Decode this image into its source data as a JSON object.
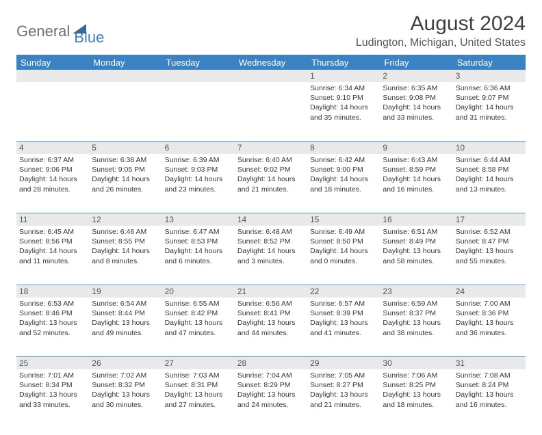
{
  "brand": {
    "part1": "General",
    "part2": "Blue"
  },
  "title": "August 2024",
  "location": "Ludington, Michigan, United States",
  "columns": [
    "Sunday",
    "Monday",
    "Tuesday",
    "Wednesday",
    "Thursday",
    "Friday",
    "Saturday"
  ],
  "colors": {
    "header_bg": "#3b82c4",
    "header_text": "#ffffff",
    "daynum_bg": "#e9e9e9",
    "rule": "#3b82c4",
    "text": "#353535",
    "brand_gray": "#6f6f6f",
    "brand_blue": "#3b82c4"
  },
  "weeks": [
    {
      "nums": [
        "",
        "",
        "",
        "",
        "1",
        "2",
        "3"
      ],
      "cells": [
        null,
        null,
        null,
        null,
        {
          "sunrise": "6:34 AM",
          "sunset": "9:10 PM",
          "daylight": "14 hours and 35 minutes."
        },
        {
          "sunrise": "6:35 AM",
          "sunset": "9:08 PM",
          "daylight": "14 hours and 33 minutes."
        },
        {
          "sunrise": "6:36 AM",
          "sunset": "9:07 PM",
          "daylight": "14 hours and 31 minutes."
        }
      ]
    },
    {
      "nums": [
        "4",
        "5",
        "6",
        "7",
        "8",
        "9",
        "10"
      ],
      "cells": [
        {
          "sunrise": "6:37 AM",
          "sunset": "9:06 PM",
          "daylight": "14 hours and 28 minutes."
        },
        {
          "sunrise": "6:38 AM",
          "sunset": "9:05 PM",
          "daylight": "14 hours and 26 minutes."
        },
        {
          "sunrise": "6:39 AM",
          "sunset": "9:03 PM",
          "daylight": "14 hours and 23 minutes."
        },
        {
          "sunrise": "6:40 AM",
          "sunset": "9:02 PM",
          "daylight": "14 hours and 21 minutes."
        },
        {
          "sunrise": "6:42 AM",
          "sunset": "9:00 PM",
          "daylight": "14 hours and 18 minutes."
        },
        {
          "sunrise": "6:43 AM",
          "sunset": "8:59 PM",
          "daylight": "14 hours and 16 minutes."
        },
        {
          "sunrise": "6:44 AM",
          "sunset": "8:58 PM",
          "daylight": "14 hours and 13 minutes."
        }
      ]
    },
    {
      "nums": [
        "11",
        "12",
        "13",
        "14",
        "15",
        "16",
        "17"
      ],
      "cells": [
        {
          "sunrise": "6:45 AM",
          "sunset": "8:56 PM",
          "daylight": "14 hours and 11 minutes."
        },
        {
          "sunrise": "6:46 AM",
          "sunset": "8:55 PM",
          "daylight": "14 hours and 8 minutes."
        },
        {
          "sunrise": "6:47 AM",
          "sunset": "8:53 PM",
          "daylight": "14 hours and 6 minutes."
        },
        {
          "sunrise": "6:48 AM",
          "sunset": "8:52 PM",
          "daylight": "14 hours and 3 minutes."
        },
        {
          "sunrise": "6:49 AM",
          "sunset": "8:50 PM",
          "daylight": "14 hours and 0 minutes."
        },
        {
          "sunrise": "6:51 AM",
          "sunset": "8:49 PM",
          "daylight": "13 hours and 58 minutes."
        },
        {
          "sunrise": "6:52 AM",
          "sunset": "8:47 PM",
          "daylight": "13 hours and 55 minutes."
        }
      ]
    },
    {
      "nums": [
        "18",
        "19",
        "20",
        "21",
        "22",
        "23",
        "24"
      ],
      "cells": [
        {
          "sunrise": "6:53 AM",
          "sunset": "8:46 PM",
          "daylight": "13 hours and 52 minutes."
        },
        {
          "sunrise": "6:54 AM",
          "sunset": "8:44 PM",
          "daylight": "13 hours and 49 minutes."
        },
        {
          "sunrise": "6:55 AM",
          "sunset": "8:42 PM",
          "daylight": "13 hours and 47 minutes."
        },
        {
          "sunrise": "6:56 AM",
          "sunset": "8:41 PM",
          "daylight": "13 hours and 44 minutes."
        },
        {
          "sunrise": "6:57 AM",
          "sunset": "8:39 PM",
          "daylight": "13 hours and 41 minutes."
        },
        {
          "sunrise": "6:59 AM",
          "sunset": "8:37 PM",
          "daylight": "13 hours and 38 minutes."
        },
        {
          "sunrise": "7:00 AM",
          "sunset": "8:36 PM",
          "daylight": "13 hours and 36 minutes."
        }
      ]
    },
    {
      "nums": [
        "25",
        "26",
        "27",
        "28",
        "29",
        "30",
        "31"
      ],
      "cells": [
        {
          "sunrise": "7:01 AM",
          "sunset": "8:34 PM",
          "daylight": "13 hours and 33 minutes."
        },
        {
          "sunrise": "7:02 AM",
          "sunset": "8:32 PM",
          "daylight": "13 hours and 30 minutes."
        },
        {
          "sunrise": "7:03 AM",
          "sunset": "8:31 PM",
          "daylight": "13 hours and 27 minutes."
        },
        {
          "sunrise": "7:04 AM",
          "sunset": "8:29 PM",
          "daylight": "13 hours and 24 minutes."
        },
        {
          "sunrise": "7:05 AM",
          "sunset": "8:27 PM",
          "daylight": "13 hours and 21 minutes."
        },
        {
          "sunrise": "7:06 AM",
          "sunset": "8:25 PM",
          "daylight": "13 hours and 18 minutes."
        },
        {
          "sunrise": "7:08 AM",
          "sunset": "8:24 PM",
          "daylight": "13 hours and 16 minutes."
        }
      ]
    }
  ],
  "labels": {
    "sunrise": "Sunrise: ",
    "sunset": "Sunset: ",
    "daylight": "Daylight: "
  }
}
